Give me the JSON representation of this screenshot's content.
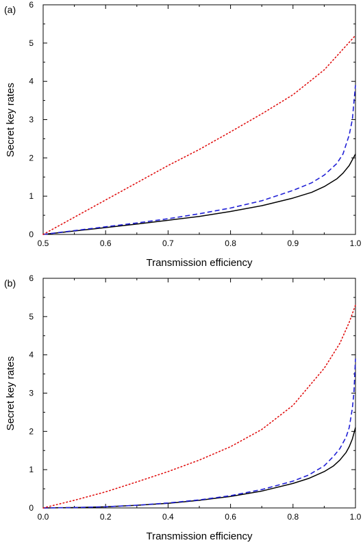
{
  "chart_data": [
    {
      "type": "line",
      "panel_label": "(a)",
      "xlabel": "Transmission efficiency",
      "ylabel": "Secret key rates",
      "xlim": [
        0.5,
        1.0
      ],
      "ylim": [
        0,
        6
      ],
      "xticks": [
        "0.5",
        "0.6",
        "0.7",
        "0.8",
        "0.9",
        "1.0"
      ],
      "yticks": [
        "0",
        "1",
        "2",
        "3",
        "4",
        "5",
        "6"
      ],
      "grid": false,
      "series": [
        {
          "style": "solid",
          "color": "#000000",
          "x": [
            0.5,
            0.55,
            0.6,
            0.65,
            0.7,
            0.75,
            0.8,
            0.85,
            0.9,
            0.93,
            0.95,
            0.97,
            0.98,
            0.99,
            1.0
          ],
          "y": [
            0.0,
            0.09,
            0.18,
            0.27,
            0.37,
            0.47,
            0.6,
            0.75,
            0.95,
            1.1,
            1.25,
            1.45,
            1.6,
            1.8,
            2.1
          ]
        },
        {
          "style": "dashed",
          "color": "#1f1fd6",
          "x": [
            0.5,
            0.55,
            0.6,
            0.65,
            0.7,
            0.75,
            0.8,
            0.85,
            0.9,
            0.93,
            0.95,
            0.97,
            0.98,
            0.99,
            0.995,
            1.0
          ],
          "y": [
            0.0,
            0.1,
            0.2,
            0.3,
            0.41,
            0.54,
            0.69,
            0.88,
            1.15,
            1.35,
            1.55,
            1.85,
            2.1,
            2.6,
            3.0,
            3.9
          ]
        },
        {
          "style": "dotted",
          "color": "#e01010",
          "x": [
            0.5,
            0.55,
            0.6,
            0.65,
            0.7,
            0.75,
            0.8,
            0.85,
            0.9,
            0.95,
            1.0
          ],
          "y": [
            0.0,
            0.45,
            0.9,
            1.35,
            1.8,
            2.22,
            2.68,
            3.15,
            3.65,
            4.3,
            5.2
          ]
        }
      ]
    },
    {
      "type": "line",
      "panel_label": "(b)",
      "xlabel": "Transmission efficiency",
      "ylabel": "Secret key rates",
      "xlim": [
        0.0,
        1.0
      ],
      "ylim": [
        0,
        6
      ],
      "xticks": [
        "0.0",
        "0.2",
        "0.4",
        "0.6",
        "0.8",
        "1.0"
      ],
      "yticks": [
        "0",
        "1",
        "2",
        "3",
        "4",
        "5",
        "6"
      ],
      "grid": false,
      "series": [
        {
          "style": "solid",
          "color": "#000000",
          "x": [
            0.0,
            0.1,
            0.2,
            0.3,
            0.4,
            0.5,
            0.6,
            0.7,
            0.8,
            0.85,
            0.9,
            0.93,
            0.95,
            0.97,
            0.98,
            0.99,
            1.0
          ],
          "y": [
            0.0,
            0.01,
            0.03,
            0.07,
            0.12,
            0.2,
            0.3,
            0.44,
            0.64,
            0.77,
            0.95,
            1.1,
            1.25,
            1.45,
            1.6,
            1.8,
            2.1
          ]
        },
        {
          "style": "dashed",
          "color": "#1f1fd6",
          "x": [
            0.0,
            0.1,
            0.2,
            0.3,
            0.4,
            0.5,
            0.6,
            0.7,
            0.8,
            0.85,
            0.9,
            0.93,
            0.95,
            0.97,
            0.98,
            0.99,
            0.995,
            1.0
          ],
          "y": [
            0.0,
            0.01,
            0.03,
            0.07,
            0.13,
            0.21,
            0.32,
            0.48,
            0.7,
            0.86,
            1.1,
            1.35,
            1.55,
            1.85,
            2.1,
            2.6,
            3.0,
            3.9
          ]
        },
        {
          "style": "dotted",
          "color": "#e01010",
          "x": [
            0.0,
            0.1,
            0.2,
            0.3,
            0.4,
            0.5,
            0.6,
            0.7,
            0.8,
            0.9,
            0.95,
            0.98,
            1.0
          ],
          "y": [
            0.0,
            0.2,
            0.42,
            0.68,
            0.95,
            1.25,
            1.6,
            2.05,
            2.68,
            3.65,
            4.3,
            4.85,
            5.3
          ]
        }
      ]
    }
  ]
}
